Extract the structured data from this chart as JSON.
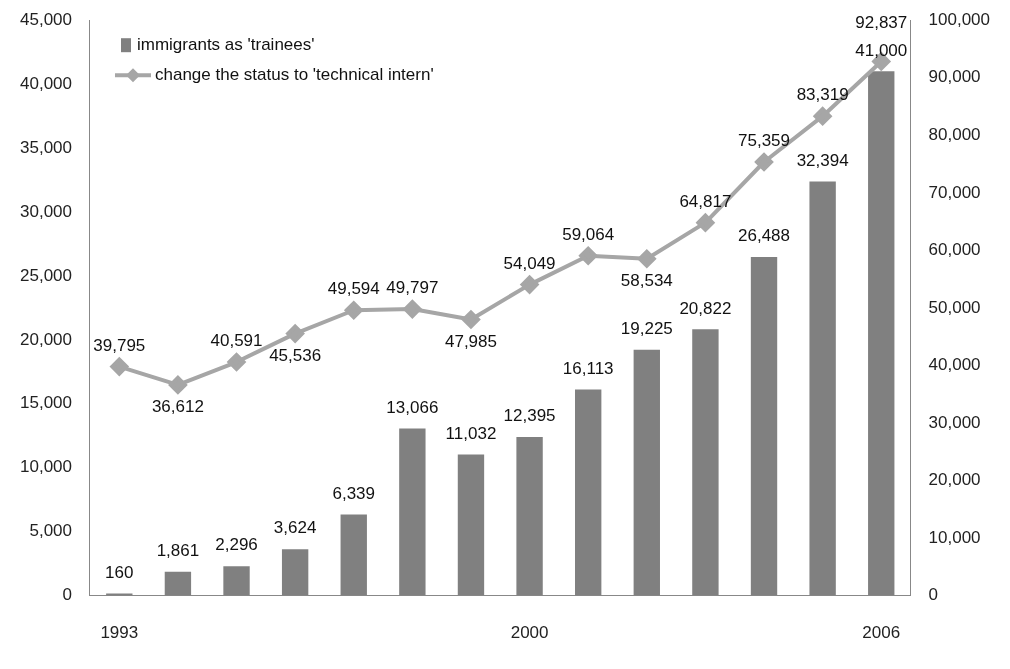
{
  "chart_data": {
    "type": "bar",
    "categories": [
      "1993",
      null,
      null,
      null,
      null,
      null,
      null,
      "2000",
      null,
      null,
      null,
      null,
      null,
      "2006"
    ],
    "series": [
      {
        "name": "immigrants as 'trainees'",
        "color": "#808080",
        "values": [
          160,
          1861,
          2296,
          3624,
          6339,
          13066,
          11032,
          12395,
          16113,
          19225,
          20822,
          26488,
          32394,
          41000
        ],
        "value_labels": [
          "160",
          "1,861",
          "2,296",
          "3,624",
          "6,339",
          "13,066",
          "11,032",
          "12,395",
          "16,113",
          "19,225",
          "20,822",
          "26,488",
          "32,394",
          "41,000"
        ]
      },
      {
        "name": "change the status to 'technical intern'",
        "type": "line",
        "axis": "y2",
        "color": "#a6a6a6",
        "values": [
          39795,
          36612,
          40591,
          45536,
          49594,
          49797,
          47985,
          54049,
          59064,
          58534,
          64817,
          75359,
          83319,
          92837
        ],
        "value_labels": [
          "39,795",
          "36,612",
          "40,591",
          "45,536",
          "49,594",
          "49,797",
          "47,985",
          "54,049",
          "59,064",
          "58,534",
          "64,817",
          "75,359",
          "83,319",
          "92,837"
        ]
      }
    ],
    "ylim": [
      0,
      45000
    ],
    "yticks": [
      {
        "value": 0,
        "label": "0"
      },
      {
        "value": 5000,
        "label": "5,000"
      },
      {
        "value": 10000,
        "label": "10,000"
      },
      {
        "value": 15000,
        "label": "15,000"
      },
      {
        "value": 20000,
        "label": "20,000"
      },
      {
        "value": 25000,
        "label": "25,000"
      },
      {
        "value": 30000,
        "label": "30,000"
      },
      {
        "value": 35000,
        "label": "35,000"
      },
      {
        "value": 40000,
        "label": "40,000"
      },
      {
        "value": 45000,
        "label": "45,000"
      }
    ],
    "y2lim": [
      0,
      100000
    ],
    "y2ticks": [
      {
        "value": 0,
        "label": "0"
      },
      {
        "value": 10000,
        "label": "10,000"
      },
      {
        "value": 20000,
        "label": "20,000"
      },
      {
        "value": 30000,
        "label": "30,000"
      },
      {
        "value": 40000,
        "label": "40,000"
      },
      {
        "value": 50000,
        "label": "50,000"
      },
      {
        "value": 60000,
        "label": "60,000"
      },
      {
        "value": 70000,
        "label": "70,000"
      },
      {
        "value": 80000,
        "label": "80,000"
      },
      {
        "value": 90000,
        "label": "90,000"
      },
      {
        "value": 100000,
        "label": "100,000"
      }
    ],
    "grid": false,
    "legend": "top left",
    "marker": "diamond",
    "line_style": "solid"
  }
}
